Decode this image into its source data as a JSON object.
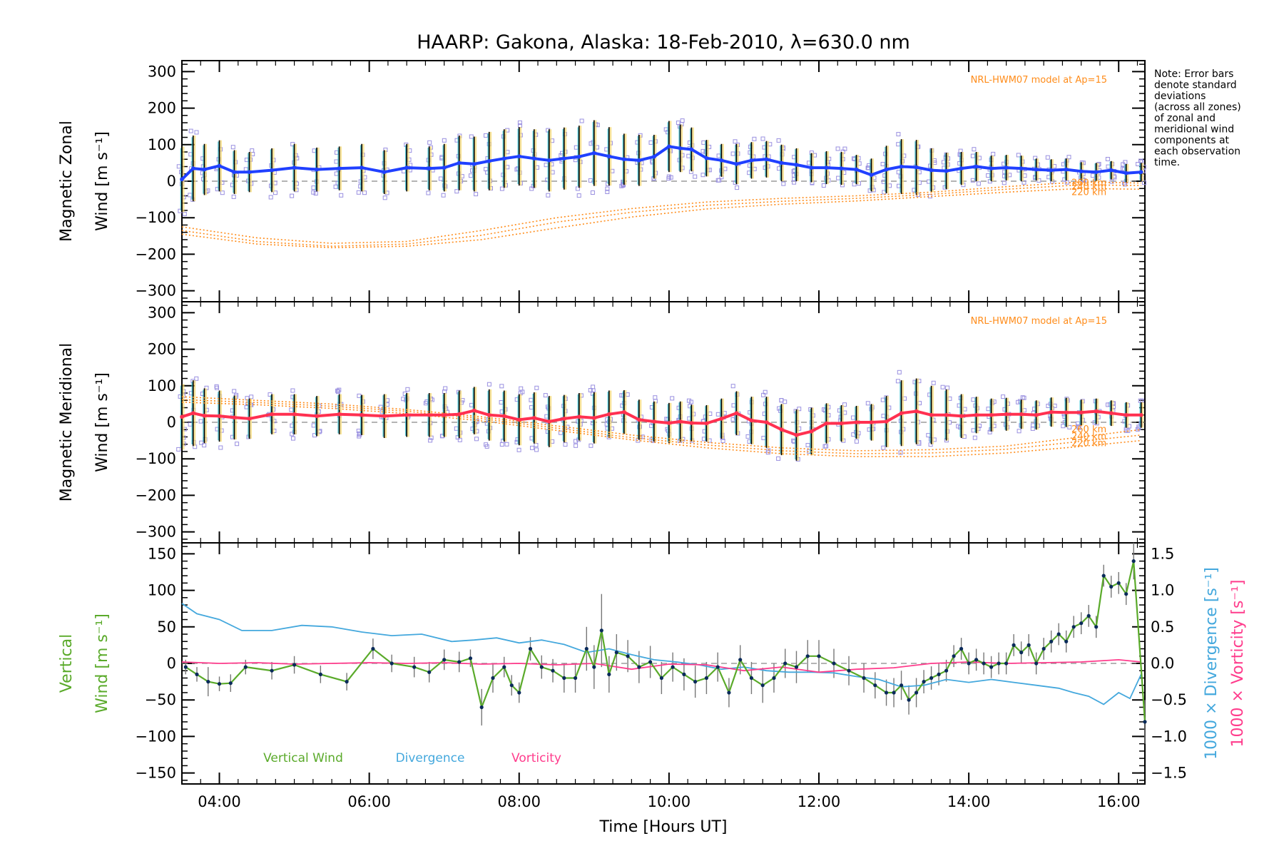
{
  "title": "HAARP: Gakona,  Alaska: 18-Feb-2010, λ=630.0 nm",
  "note_lines": [
    "Note: Error bars",
    "denote standard",
    "deviations",
    "(across all zones)",
    "of zonal and",
    "meridional wind",
    "components at",
    "each observation",
    "time."
  ],
  "colors": {
    "zonal": "#2040ff",
    "meridional": "#ff3050",
    "model": "#ff8c1a",
    "zone_points": "#9a90e0",
    "vertical": "#5aaa2a",
    "divergence": "#44a8dd",
    "vorticity": "#ff3c8c",
    "axis": "#000000"
  },
  "chart_data": [
    {
      "type": "line",
      "panel": "zonal",
      "ylabel_lines": [
        "Magnetic Zonal",
        "Wind [m s⁻¹]"
      ],
      "yticks": [
        300,
        200,
        100,
        0,
        -100,
        -200,
        -300
      ],
      "ylim": [
        -330,
        330
      ],
      "model_label": "NRL-HWM07 model at Ap=15",
      "model_heights": [
        "260 km",
        "240 km",
        "220 km"
      ],
      "series": [
        {
          "x": [
            3.5,
            3.65,
            3.8,
            4.0,
            4.2,
            4.4,
            4.7,
            5.0,
            5.3,
            5.6,
            5.9,
            6.2,
            6.5,
            6.8,
            7.0,
            7.2,
            7.4,
            7.6,
            7.8,
            8.0,
            8.2,
            8.4,
            8.6,
            8.8,
            9.0,
            9.2,
            9.4,
            9.6,
            9.8,
            10.0,
            10.15,
            10.3,
            10.5,
            10.7,
            10.9,
            11.1,
            11.3,
            11.5,
            11.7,
            11.9,
            12.1,
            12.3,
            12.5,
            12.7,
            12.9,
            13.1,
            13.3,
            13.5,
            13.7,
            13.9,
            14.1,
            14.3,
            14.5,
            14.7,
            14.9,
            15.1,
            15.3,
            15.5,
            15.7,
            15.9,
            16.1,
            16.3
          ],
          "values": [
            5,
            35,
            32,
            42,
            25,
            25,
            30,
            37,
            32,
            35,
            37,
            25,
            37,
            35,
            37,
            50,
            47,
            55,
            62,
            68,
            62,
            57,
            62,
            67,
            77,
            68,
            60,
            57,
            67,
            95,
            90,
            87,
            63,
            57,
            47,
            57,
            60,
            50,
            45,
            37,
            37,
            35,
            32,
            17,
            32,
            40,
            38,
            30,
            28,
            35,
            40,
            35,
            37,
            35,
            32,
            30,
            32,
            27,
            25,
            30,
            22,
            25
          ]
        }
      ],
      "model_curves": [
        {
          "height": "260 km",
          "x": [
            3.5,
            4.5,
            5.5,
            6.5,
            7.5,
            8.5,
            9.5,
            10.5,
            11.5,
            12.5,
            13.5,
            14.5,
            15.5,
            16.3
          ],
          "values": [
            -125,
            -155,
            -170,
            -165,
            -135,
            -100,
            -75,
            -57,
            -47,
            -40,
            -30,
            -15,
            -2,
            -5
          ]
        },
        {
          "height": "240 km",
          "x": [
            3.5,
            4.5,
            5.5,
            6.5,
            7.5,
            8.5,
            9.5,
            10.5,
            11.5,
            12.5,
            13.5,
            14.5,
            15.5,
            16.3
          ],
          "values": [
            -135,
            -165,
            -178,
            -172,
            -148,
            -112,
            -85,
            -66,
            -55,
            -47,
            -36,
            -22,
            -10,
            -12
          ]
        },
        {
          "height": "220 km",
          "x": [
            3.5,
            4.5,
            5.5,
            6.5,
            7.5,
            8.5,
            9.5,
            10.5,
            11.5,
            12.5,
            13.5,
            14.5,
            15.5,
            16.3
          ],
          "values": [
            -145,
            -172,
            -182,
            -178,
            -160,
            -128,
            -98,
            -76,
            -63,
            -54,
            -42,
            -30,
            -20,
            -22
          ]
        }
      ],
      "error_halfwidth": [
        90,
        90,
        70,
        70,
        60,
        55,
        60,
        65,
        60,
        60,
        65,
        60,
        65,
        60,
        65,
        75,
        75,
        80,
        80,
        80,
        80,
        85,
        85,
        85,
        90,
        80,
        70,
        70,
        60,
        70,
        65,
        60,
        50,
        45,
        55,
        50,
        50,
        50,
        45,
        40,
        45,
        45,
        40,
        45,
        65,
        75,
        75,
        60,
        50,
        45,
        40,
        35,
        35,
        35,
        30,
        30,
        30,
        25,
        25,
        25,
        25,
        25
      ]
    },
    {
      "type": "line",
      "panel": "meridional",
      "ylabel_lines": [
        "Magnetic Meridional",
        "Wind [m s⁻¹]"
      ],
      "yticks": [
        300,
        200,
        100,
        0,
        -100,
        -200,
        -300
      ],
      "ylim": [
        -330,
        330
      ],
      "model_label": "NRL-HWM07 model at Ap=15",
      "model_heights": [
        "260 km",
        "240 km",
        "220 km"
      ],
      "series": [
        {
          "x": [
            3.5,
            3.65,
            3.8,
            4.0,
            4.2,
            4.4,
            4.7,
            5.0,
            5.3,
            5.6,
            5.9,
            6.2,
            6.5,
            6.8,
            7.0,
            7.2,
            7.4,
            7.6,
            7.8,
            8.0,
            8.2,
            8.4,
            8.6,
            8.8,
            9.0,
            9.2,
            9.4,
            9.6,
            9.8,
            10.0,
            10.15,
            10.3,
            10.5,
            10.7,
            10.9,
            11.1,
            11.3,
            11.5,
            11.7,
            11.9,
            12.1,
            12.3,
            12.5,
            12.7,
            12.9,
            13.1,
            13.3,
            13.5,
            13.7,
            13.9,
            14.1,
            14.3,
            14.5,
            14.7,
            14.9,
            15.1,
            15.3,
            15.5,
            15.7,
            15.9,
            16.1,
            16.3
          ],
          "values": [
            15,
            25,
            18,
            17,
            13,
            10,
            22,
            22,
            17,
            22,
            20,
            17,
            20,
            20,
            20,
            22,
            32,
            20,
            17,
            7,
            12,
            2,
            10,
            15,
            12,
            22,
            28,
            7,
            2,
            -2,
            2,
            -2,
            -3,
            10,
            25,
            5,
            0,
            -20,
            -35,
            -25,
            -3,
            -3,
            0,
            0,
            2,
            25,
            30,
            20,
            20,
            17,
            20,
            20,
            22,
            22,
            20,
            28,
            27,
            27,
            30,
            25,
            20,
            20
          ]
        }
      ],
      "model_curves": [
        {
          "height": "260 km",
          "x": [
            3.5,
            4.5,
            5.5,
            6.5,
            7.5,
            8.5,
            9.5,
            10.5,
            11.5,
            12.5,
            13.5,
            14.5,
            15.5,
            16.3
          ],
          "values": [
            70,
            60,
            50,
            35,
            15,
            -10,
            -35,
            -55,
            -70,
            -78,
            -75,
            -65,
            -40,
            -20
          ]
        },
        {
          "height": "240 km",
          "x": [
            3.5,
            4.5,
            5.5,
            6.5,
            7.5,
            8.5,
            9.5,
            10.5,
            11.5,
            12.5,
            13.5,
            14.5,
            15.5,
            16.3
          ],
          "values": [
            62,
            54,
            44,
            30,
            10,
            -16,
            -42,
            -62,
            -78,
            -86,
            -84,
            -74,
            -52,
            -35
          ]
        },
        {
          "height": "220 km",
          "x": [
            3.5,
            4.5,
            5.5,
            6.5,
            7.5,
            8.5,
            9.5,
            10.5,
            11.5,
            12.5,
            13.5,
            14.5,
            15.5,
            16.3
          ],
          "values": [
            55,
            48,
            38,
            24,
            4,
            -22,
            -48,
            -70,
            -86,
            -94,
            -94,
            -84,
            -66,
            -50
          ]
        }
      ],
      "error_halfwidth": [
        90,
        90,
        75,
        70,
        60,
        55,
        55,
        55,
        55,
        55,
        55,
        60,
        60,
        60,
        60,
        65,
        65,
        70,
        70,
        70,
        70,
        70,
        65,
        65,
        70,
        65,
        60,
        55,
        55,
        55,
        55,
        50,
        50,
        55,
        60,
        65,
        70,
        70,
        70,
        65,
        55,
        50,
        45,
        50,
        70,
        90,
        90,
        80,
        70,
        60,
        50,
        45,
        45,
        40,
        40,
        40,
        40,
        35,
        35,
        35,
        35,
        35
      ]
    },
    {
      "type": "line",
      "panel": "vertical",
      "ylabel_left_lines": [
        "Vertical",
        "Wind [m s⁻¹]"
      ],
      "ylabel_right_1": "1000 × Divergence [s⁻¹]",
      "ylabel_right_2": "1000 × Vorticity [s⁻¹]",
      "yticks_left": [
        150,
        100,
        50,
        0,
        -50,
        -100,
        -150
      ],
      "yticks_right": [
        "1.5",
        "1.0",
        "0.5",
        "0.0",
        "−0.5",
        "−1.0",
        "−1.5"
      ],
      "ylim": [
        -165,
        165
      ],
      "legend": [
        "Vertical Wind",
        "Divergence",
        "Vorticity"
      ],
      "series": [
        {
          "name": "Vertical Wind",
          "x": [
            3.55,
            3.7,
            3.85,
            4.0,
            4.15,
            4.35,
            4.7,
            5.0,
            5.35,
            5.7,
            6.05,
            6.3,
            6.6,
            6.8,
            7.0,
            7.2,
            7.35,
            7.5,
            7.65,
            7.8,
            7.9,
            8.0,
            8.15,
            8.3,
            8.45,
            8.6,
            8.75,
            8.9,
            9.0,
            9.1,
            9.2,
            9.3,
            9.45,
            9.6,
            9.75,
            9.9,
            10.05,
            10.2,
            10.35,
            10.5,
            10.65,
            10.8,
            10.95,
            11.1,
            11.25,
            11.4,
            11.55,
            11.7,
            11.85,
            12.0,
            12.2,
            12.4,
            12.6,
            12.75,
            12.9,
            13.0,
            13.1,
            13.2,
            13.3,
            13.4,
            13.5,
            13.6,
            13.7,
            13.8,
            13.9,
            14.0,
            14.1,
            14.2,
            14.3,
            14.4,
            14.5,
            14.6,
            14.7,
            14.8,
            14.9,
            15.0,
            15.1,
            15.2,
            15.3,
            15.4,
            15.5,
            15.6,
            15.7,
            15.8,
            15.9,
            16.0,
            16.1,
            16.2,
            16.35
          ],
          "values": [
            -5,
            -15,
            -25,
            -28,
            -27,
            -5,
            -10,
            -2,
            -15,
            -25,
            20,
            0,
            -5,
            -12,
            5,
            2,
            7,
            -60,
            -20,
            -5,
            -30,
            -40,
            20,
            -5,
            -10,
            -20,
            -20,
            20,
            -5,
            45,
            -15,
            15,
            10,
            -5,
            2,
            -20,
            -5,
            -15,
            -25,
            -20,
            -5,
            -40,
            5,
            -20,
            -30,
            -20,
            0,
            -5,
            10,
            10,
            0,
            -10,
            -20,
            -30,
            -40,
            -40,
            -30,
            -50,
            -40,
            -25,
            -20,
            -15,
            -10,
            10,
            20,
            0,
            5,
            0,
            -5,
            0,
            0,
            25,
            15,
            25,
            0,
            20,
            30,
            40,
            30,
            50,
            55,
            65,
            50,
            120,
            105,
            110,
            95,
            140,
            -80
          ]
        },
        {
          "name": "Divergence",
          "x": [
            3.5,
            3.7,
            4.0,
            4.3,
            4.7,
            5.1,
            5.5,
            5.9,
            6.3,
            6.7,
            7.1,
            7.4,
            7.7,
            8.0,
            8.3,
            8.6,
            8.9,
            9.2,
            9.5,
            9.8,
            10.1,
            10.4,
            10.7,
            11.0,
            11.3,
            11.6,
            11.9,
            12.2,
            12.5,
            12.8,
            13.1,
            13.4,
            13.7,
            14.0,
            14.3,
            14.6,
            14.9,
            15.2,
            15.4,
            15.6,
            15.8,
            16.0,
            16.15,
            16.3
          ],
          "values": [
            0.82,
            0.68,
            0.6,
            0.45,
            0.45,
            0.52,
            0.5,
            0.43,
            0.38,
            0.4,
            0.3,
            0.32,
            0.35,
            0.28,
            0.32,
            0.26,
            0.15,
            0.2,
            0.12,
            0.05,
            0.02,
            -0.02,
            -0.08,
            -0.05,
            -0.1,
            -0.12,
            -0.12,
            -0.13,
            -0.18,
            -0.22,
            -0.32,
            -0.3,
            -0.22,
            -0.26,
            -0.22,
            -0.26,
            -0.3,
            -0.34,
            -0.4,
            -0.45,
            -0.56,
            -0.4,
            -0.48,
            -0.15
          ]
        },
        {
          "name": "Vorticity",
          "x": [
            3.5,
            4.0,
            4.5,
            5.0,
            5.5,
            6.0,
            6.5,
            7.0,
            7.5,
            8.0,
            8.5,
            9.0,
            9.5,
            10.0,
            10.5,
            11.0,
            11.5,
            12.0,
            12.5,
            13.0,
            13.5,
            14.0,
            14.5,
            15.0,
            15.5,
            16.0,
            16.3
          ],
          "values": [
            0.02,
            0.0,
            0.01,
            -0.01,
            0.0,
            0.01,
            0.0,
            0.01,
            -0.01,
            0.0,
            -0.02,
            0.0,
            -0.08,
            -0.01,
            -0.02,
            -0.1,
            -0.05,
            -0.12,
            -0.08,
            -0.06,
            0.0,
            0.02,
            0.0,
            0.01,
            0.02,
            0.05,
            0.02
          ]
        }
      ],
      "error_halfwidth": [
        10,
        10,
        20,
        10,
        12,
        10,
        12,
        12,
        12,
        12,
        14,
        12,
        14,
        14,
        14,
        14,
        12,
        25,
        20,
        14,
        14,
        14,
        16,
        16,
        16,
        20,
        20,
        30,
        30,
        50,
        25,
        25,
        22,
        22,
        22,
        22,
        20,
        22,
        22,
        22,
        20,
        20,
        20,
        22,
        24,
        20,
        20,
        22,
        22,
        22,
        20,
        20,
        20,
        18,
        18,
        20,
        20,
        20,
        20,
        16,
        16,
        15,
        15,
        15,
        15,
        15,
        15,
        15,
        15,
        15,
        15,
        15,
        15,
        15,
        15,
        15,
        15,
        15,
        15,
        15,
        15,
        15,
        15,
        15,
        15,
        15,
        15,
        25,
        30
      ]
    }
  ],
  "x_axis": {
    "label": "Time [Hours UT]",
    "xlim": [
      3.5,
      16.35
    ],
    "tick_values": [
      4,
      6,
      8,
      10,
      12,
      14,
      16
    ],
    "tick_labels": [
      "04:00",
      "06:00",
      "08:00",
      "10:00",
      "12:00",
      "14:00",
      "16:00"
    ]
  }
}
